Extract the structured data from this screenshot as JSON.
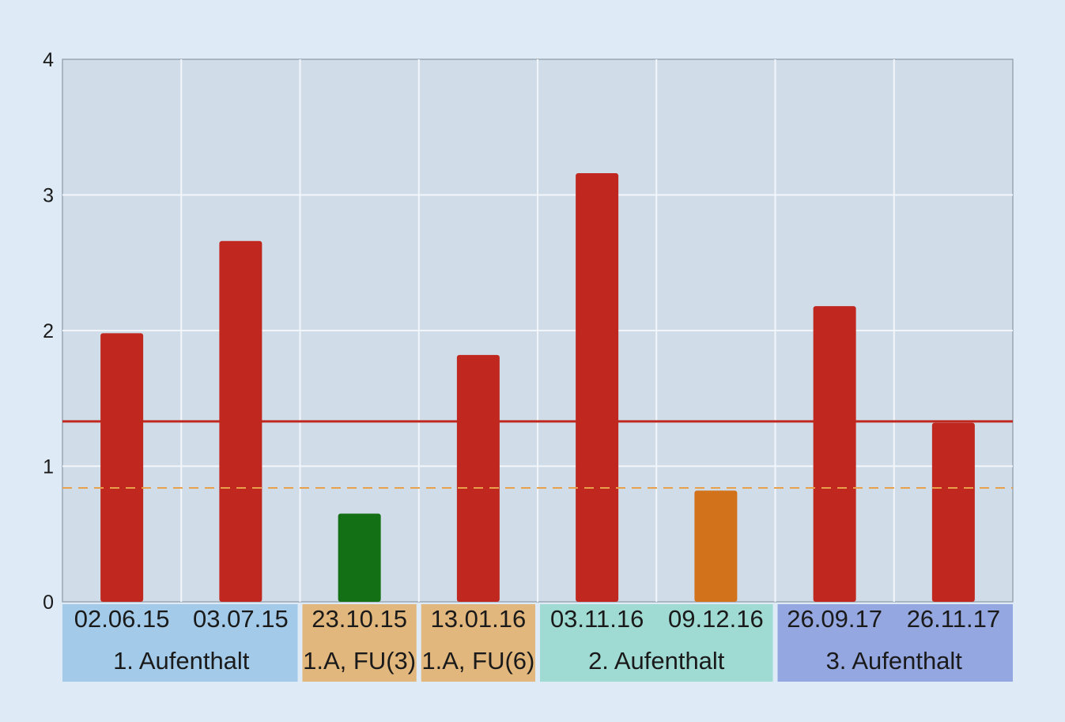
{
  "chart_data": {
    "type": "bar",
    "title": "",
    "xlabel": "",
    "ylabel": "",
    "ylim": [
      0,
      4
    ],
    "yticks": [
      "0",
      "1",
      "2",
      "3",
      "4"
    ],
    "grid": true,
    "categories": [
      "02.06.15",
      "03.07.15",
      "23.10.15",
      "13.01.16",
      "03.11.16",
      "09.12.16",
      "26.09.17",
      "26.11.17"
    ],
    "values": [
      1.98,
      2.66,
      0.65,
      1.82,
      3.16,
      0.82,
      2.18,
      1.32
    ],
    "bar_colors": [
      "#c0281f",
      "#c0281f",
      "#147014",
      "#c0281f",
      "#c0281f",
      "#d2721b",
      "#c0281f",
      "#c0281f"
    ],
    "groups": [
      {
        "label": "1. Aufenthalt",
        "span": 2,
        "color": "#a3cbe9"
      },
      {
        "label": "1.A, FU(3)",
        "span": 1,
        "color": "#e2b77d"
      },
      {
        "label": "1.A, FU(6)",
        "span": 1,
        "color": "#e2b77d"
      },
      {
        "label": "2. Aufenthalt",
        "span": 2,
        "color": "#9fdbd2"
      },
      {
        "label": "3. Aufenthalt",
        "span": 2,
        "color": "#95a7e0"
      }
    ],
    "reference_lines": [
      {
        "value": 1.33,
        "style": "solid",
        "color": "#c0281f"
      },
      {
        "value": 0.84,
        "style": "dashed",
        "color": "#e8a04a"
      }
    ]
  }
}
